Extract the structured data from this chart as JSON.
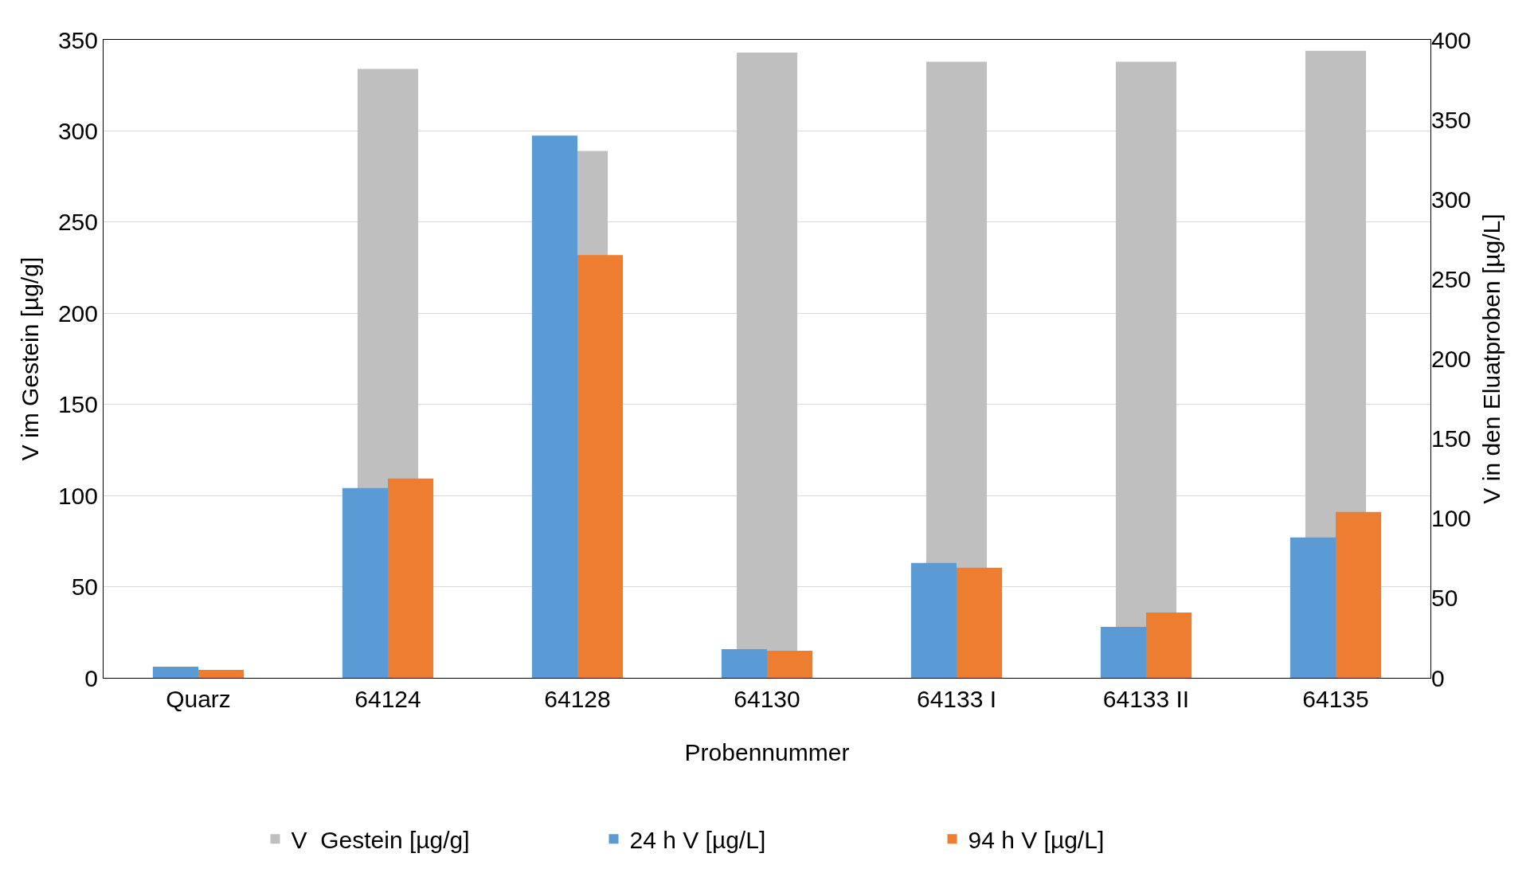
{
  "chart_data": {
    "type": "bar",
    "xlabel": "Probennummer",
    "ylabel": "V im Gestein [µg/g]",
    "y2label": "V in den Eluatproben [µg/L]",
    "categories": [
      "Quarz",
      "64124",
      "64128",
      "64130",
      "64133 I",
      "64133 II",
      "64135"
    ],
    "series": [
      {
        "name": "V  Gestein [µg/g]",
        "color": "#bfbfbf",
        "values": [
          null,
          334,
          289,
          343,
          338,
          338,
          344
        ]
      },
      {
        "name": "24 h V [µg/L]",
        "color": "#5b9bd5",
        "axis": "y2",
        "values": [
          7,
          119,
          340,
          18,
          72,
          32,
          88
        ]
      },
      {
        "name": "94 h V [µg/L]",
        "color": "#ed7d31",
        "axis": "y2",
        "values": [
          5,
          125,
          265,
          17,
          69,
          41,
          104
        ]
      }
    ],
    "ylim": [
      0,
      350
    ],
    "yticks": [
      0,
      50,
      100,
      150,
      200,
      250,
      300,
      350
    ],
    "y2lim": [
      0,
      400
    ],
    "y2ticks": [
      0,
      50,
      100,
      150,
      200,
      250,
      300,
      350,
      400
    ],
    "grid": "y",
    "legend": "bottom"
  }
}
